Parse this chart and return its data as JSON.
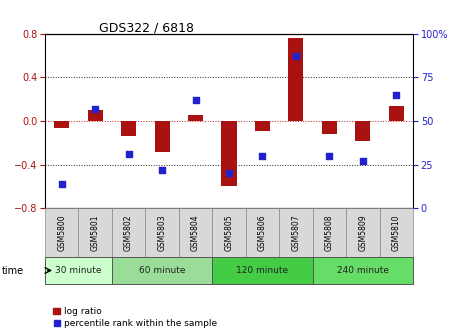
{
  "title": "GDS322 / 6818",
  "samples": [
    "GSM5800",
    "GSM5801",
    "GSM5802",
    "GSM5803",
    "GSM5804",
    "GSM5805",
    "GSM5806",
    "GSM5807",
    "GSM5808",
    "GSM5809",
    "GSM5810"
  ],
  "log_ratio": [
    -0.06,
    0.1,
    -0.14,
    -0.28,
    0.05,
    -0.6,
    -0.09,
    0.76,
    -0.12,
    -0.18,
    0.14
  ],
  "percentile_rank": [
    14,
    57,
    31,
    22,
    62,
    20,
    30,
    87,
    30,
    27,
    65
  ],
  "groups": [
    {
      "label": "30 minute",
      "start": 0,
      "end": 2,
      "color": "#ccffcc"
    },
    {
      "label": "60 minute",
      "start": 2,
      "end": 5,
      "color": "#99dd99"
    },
    {
      "label": "120 minute",
      "start": 5,
      "end": 8,
      "color": "#44cc44"
    },
    {
      "label": "240 minute",
      "start": 8,
      "end": 11,
      "color": "#66dd66"
    }
  ],
  "ylim_left": [
    -0.8,
    0.8
  ],
  "ylim_right": [
    0,
    100
  ],
  "yticks_left": [
    -0.8,
    -0.4,
    0.0,
    0.4,
    0.8
  ],
  "yticks_right": [
    0,
    25,
    50,
    75,
    100
  ],
  "bar_color": "#aa1111",
  "dot_color": "#2222cc",
  "zero_line_color": "#cc2222",
  "dotted_line_color": "#222222",
  "legend_bar_label": "log ratio",
  "legend_dot_label": "percentile rank within the sample",
  "time_label": "time",
  "bar_width": 0.45
}
